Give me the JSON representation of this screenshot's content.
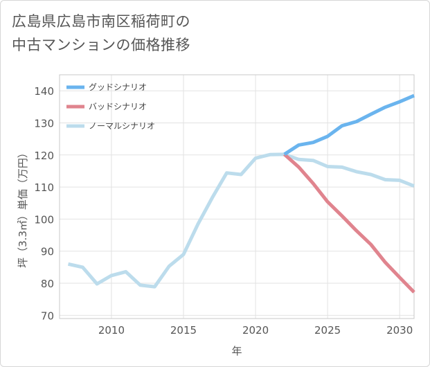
{
  "page": {
    "title_line1": "広島県広島市南区稲荷町の",
    "title_line2": "中古マンションの価格推移"
  },
  "chart_data": {
    "type": "line",
    "xlabel": "年",
    "ylabel": "坪（3.3㎡）単価（万円）",
    "xlim": [
      2006.4,
      2031
    ],
    "ylim": [
      69,
      145
    ],
    "x_ticks": [
      2010,
      2015,
      2020,
      2025,
      2030
    ],
    "y_ticks": [
      70,
      80,
      90,
      100,
      110,
      120,
      130,
      140
    ],
    "grid": true,
    "legend_position": "top-left",
    "series": [
      {
        "name": "グッドシナリオ",
        "color": "#6ab4ee",
        "x": [
          2022,
          2023,
          2024,
          2025,
          2026,
          2027,
          2028,
          2029,
          2030,
          2031
        ],
        "y": [
          120.2,
          123.1,
          123.9,
          125.8,
          129.1,
          130.4,
          132.7,
          134.9,
          136.6,
          138.5
        ]
      },
      {
        "name": "バッドシナリオ",
        "color": "#e0848e",
        "x": [
          2022,
          2023,
          2024,
          2025,
          2026,
          2027,
          2028,
          2029,
          2030,
          2031
        ],
        "y": [
          120.2,
          116.2,
          111.1,
          105.4,
          101.0,
          96.4,
          92.1,
          86.5,
          81.8,
          77.2
        ]
      },
      {
        "name": "ノーマルシナリオ",
        "color": "#bcdcec",
        "x": [
          2007,
          2008,
          2009,
          2010,
          2011,
          2012,
          2013,
          2014,
          2015,
          2016,
          2017,
          2018,
          2019,
          2020,
          2021,
          2022,
          2023,
          2024,
          2025,
          2026,
          2027,
          2028,
          2029,
          2030,
          2031
        ],
        "y": [
          86.0,
          85.0,
          79.8,
          82.4,
          83.6,
          79.4,
          78.9,
          85.3,
          89.0,
          98.4,
          106.7,
          114.4,
          113.9,
          119.0,
          120.1,
          120.2,
          118.6,
          118.3,
          116.4,
          116.2,
          114.8,
          113.9,
          112.3,
          112.1,
          110.3
        ]
      }
    ]
  }
}
